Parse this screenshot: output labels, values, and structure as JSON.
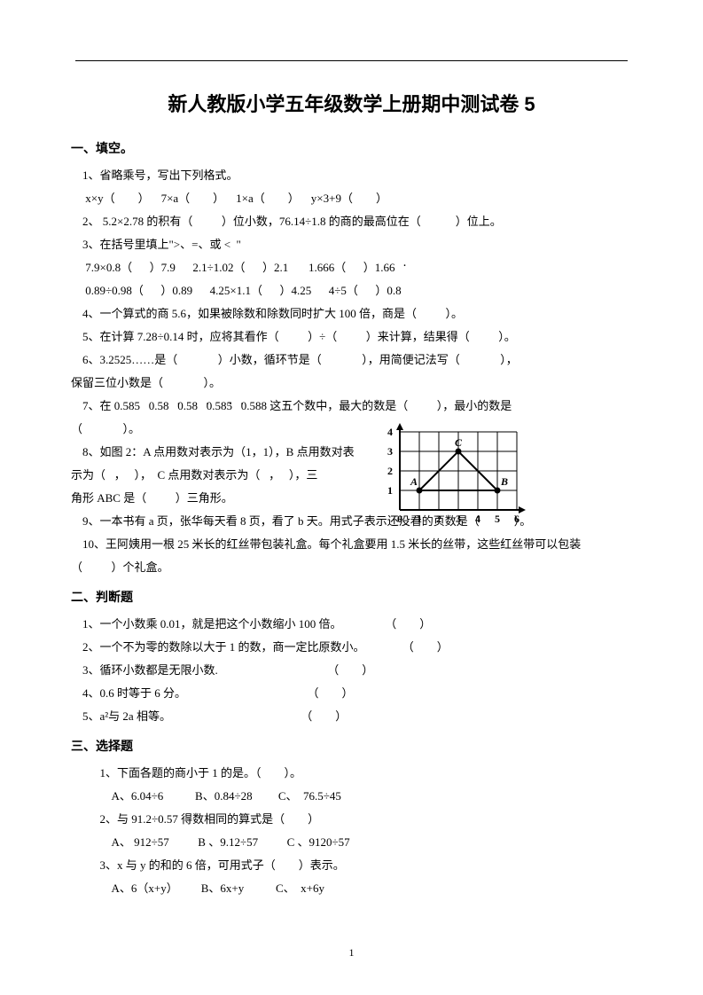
{
  "page": {
    "title": "新人教版小学五年级数学上册期中测试卷 5",
    "page_number": "1"
  },
  "sections": {
    "s1": "一、填空。",
    "s2": "二、判断题",
    "s3": "三、选择题"
  },
  "q1": {
    "t": "1、省略乘号，写出下列格式。",
    "r": " x×y（        ）    7×a（        ）    1×a（        ）    y×3+9（        ）"
  },
  "q2": "2、 5.2×2.78 的积有（          ）位小数，76.14÷1.8 的商的最高位在（            ）位上。",
  "q3": {
    "t": "3、在括号里填上\">、=、或 <  \"",
    "r1": " 7.9×0.8（      ）7.9      2.1÷1.02（      ）2.1       1.666（      ）1.6",
    "r2": " 0.89÷0.98（      ）0.89      4.25×1.1（      ）4.25      4÷5（      ）0.8"
  },
  "q4": "4、一个算式的商 5.6，如果被除数和除数同时扩大 100 倍，商是（          ）。",
  "q5": "5、在计算 7.28÷0.14 时，应将其看作（          ）÷（          ）来计算，结果得（          ）。",
  "q6": {
    "a": "6、3.2525……是（              ）小数，循环节是（              ），用简便记法写（              ），",
    "b": "保留三位小数是（              ）。"
  },
  "q7": {
    "pre": "7、在 0.585   0.5",
    "mid1": "8   0.5",
    "mid2": "8   0.",
    "mid3": "5",
    "mid4": "8",
    "mid5": "5   0.588 这五个数中，最大的数是（          ），最小的数是",
    "b": "（              ）。"
  },
  "q8": {
    "a": "8、如图 2：A 点用数对表示为（1，1），B 点用数对表",
    "b": "示为（   ，   ），  C 点用数对表示为（   ，   ），三",
    "c": "角形 ABC 是（          ）三角形。"
  },
  "q9": "9、一本书有 a 页，张华每天看 8 页，看了 b 天。用式子表示还没看的页数是（            ）。",
  "q10": {
    "a": "10、王阿姨用一根 25 米长的红丝带包装礼盒。每个礼盒要用 1.5 米长的丝带，这些红丝带可以包装",
    "b": "（          ）个礼盒。"
  },
  "j1": "1、一个小数乘 0.01，就是把这个小数缩小 100 倍。               （        ）",
  "j2": "2、一个不为零的数除以大于 1 的数，商一定比原数小。             （        ）",
  "j3": "3、循环小数都是无限小数.                                      （        ）",
  "j4": "4、0.6 时等于 6 分。                                          （        ）",
  "j5": "5、a²与 2a 相等。                                             （        ）",
  "c1": {
    "q": "1、下面各题的商小于 1 的是。（        ）。",
    "o": "A、6.04÷6           B、0.84÷28         C、  76.5÷45"
  },
  "c2": {
    "q": "2、与 91.2÷0.57 得数相同的算式是（        ）",
    "o": "A、 912÷57          B 、9.12÷57          C 、9120÷57"
  },
  "c3": {
    "q": "3、x 与 y 的和的 6 倍，可用式子（        ）表示。",
    "o": "A、6（x+y）        B、6x+y           C、  x+6y"
  },
  "graph": {
    "x_ticks": [
      "0",
      "1",
      "2",
      "3",
      "4",
      "5",
      "6"
    ],
    "y_ticks": [
      "1",
      "2",
      "3",
      "4"
    ],
    "labels": {
      "A": "A",
      "B": "B",
      "C": "C"
    },
    "points": {
      "A": [
        1,
        1
      ],
      "B": [
        5,
        1
      ],
      "C": [
        3,
        3
      ]
    },
    "cell": 22,
    "line_color": "#000000",
    "bg": "#ffffff",
    "font_size": 12
  }
}
